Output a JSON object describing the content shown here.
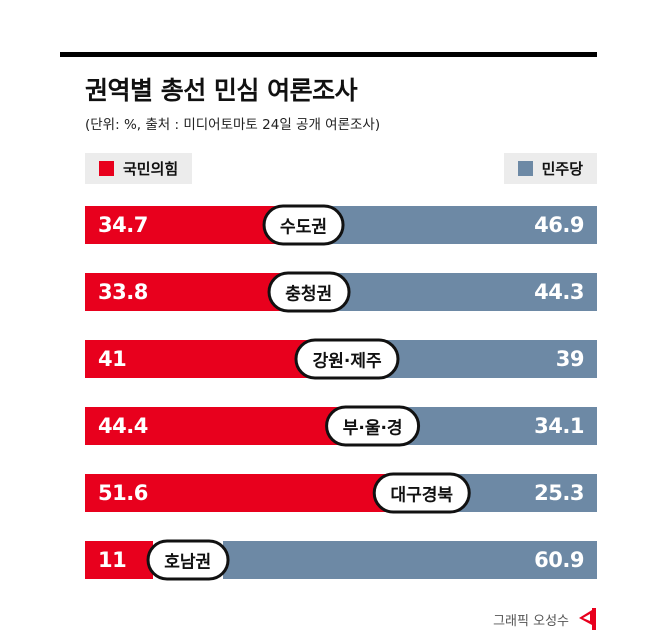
{
  "header": {
    "title": "권역별 총선 민심 여론조사",
    "subtitle": "(단위: %, 출처 : 미디어토마토 24일 공개 여론조사)"
  },
  "legend": {
    "left": {
      "label": "국민의힘",
      "color": "#e8001d"
    },
    "right": {
      "label": "민주당",
      "color": "#6d89a5"
    }
  },
  "chart_data": {
    "type": "bar",
    "orientation": "horizontal-opposed",
    "title": "권역별 총선 민심 여론조사",
    "unit": "%",
    "source": "미디어토마토 24일 공개 여론조사",
    "categories": [
      "수도권",
      "충청권",
      "강원·제주",
      "부·울·경",
      "대구경북",
      "호남권"
    ],
    "series": [
      {
        "name": "국민의힘",
        "color": "#e8001d",
        "values": [
          34.7,
          33.8,
          41,
          44.4,
          51.6,
          11
        ]
      },
      {
        "name": "민주당",
        "color": "#6d89a5",
        "values": [
          46.9,
          44.3,
          39,
          34.1,
          25.3,
          60.9
        ]
      }
    ]
  },
  "footer": {
    "credit": "그래픽 오성수"
  },
  "icons": {
    "legend_swatch_red": "red-square-icon",
    "legend_swatch_blue": "blue-square-icon",
    "publisher_logo": "red-flag-logo-icon"
  }
}
